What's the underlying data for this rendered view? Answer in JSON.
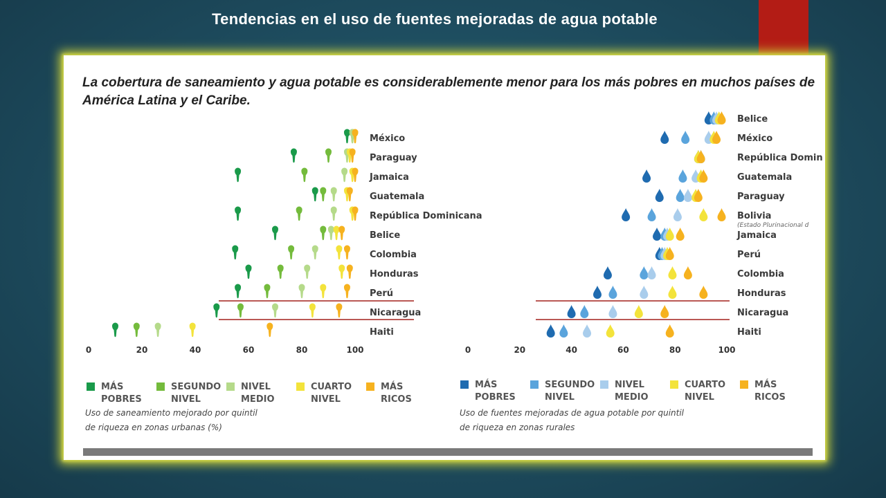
{
  "slide": {
    "title": "Tendencias en el uso de fuentes mejoradas de agua potable"
  },
  "figure": {
    "heading_line1": "La cobertura de saneamiento y agua potable es considerablemente menor para los más pobres en muchos países de",
    "heading_line2": "América Latina y el Caribe."
  },
  "chart_data": [
    {
      "type": "scatter",
      "title": "",
      "note_line1": "Uso de saneamiento mejorado por quintil",
      "note_line2": "de riqueza en zonas urbanas (%)",
      "ticks": [
        "0",
        "20",
        "40",
        "60",
        "80",
        "100"
      ],
      "xlim": [
        0,
        100
      ],
      "highlighted": [
        "Nicaragua"
      ],
      "legend": [
        {
          "l1": "MÁS",
          "l2": "POBRES",
          "color": "#1a9a4a"
        },
        {
          "l1": "SEGUNDO",
          "l2": "NIVEL",
          "color": "#74bb3c"
        },
        {
          "l1": "NIVEL",
          "l2": "MEDIO",
          "color": "#b5da8a"
        },
        {
          "l1": "CUARTO",
          "l2": "NIVEL",
          "color": "#f3e33b"
        },
        {
          "l1": "MÁS",
          "l2": "RICOS",
          "color": "#f6b21f"
        }
      ],
      "series_labels": [
        "Más pobres",
        "Segundo nivel",
        "Nivel medio",
        "Cuarto nivel",
        "Más ricos"
      ],
      "countries": [
        {
          "name": "México",
          "values": [
            97,
            99,
            99,
            100,
            100
          ]
        },
        {
          "name": "Paraguay",
          "values": [
            77,
            90,
            97,
            98,
            99
          ]
        },
        {
          "name": "Jamaica",
          "values": [
            56,
            81,
            96,
            99,
            100
          ]
        },
        {
          "name": "Guatemala",
          "values": [
            85,
            88,
            92,
            97,
            98
          ]
        },
        {
          "name": "República Dominicana",
          "values": [
            56,
            79,
            92,
            99,
            100
          ]
        },
        {
          "name": "Belice",
          "values": [
            70,
            88,
            91,
            93,
            95
          ]
        },
        {
          "name": "Colombia",
          "values": [
            55,
            76,
            85,
            94,
            97
          ]
        },
        {
          "name": "Honduras",
          "values": [
            60,
            72,
            82,
            95,
            98
          ]
        },
        {
          "name": "Perú",
          "values": [
            56,
            67,
            80,
            88,
            97
          ]
        },
        {
          "name": "Nicaragua",
          "values": [
            48,
            57,
            70,
            84,
            94
          ]
        },
        {
          "name": "Haiti",
          "values": [
            10,
            18,
            26,
            39,
            68
          ]
        }
      ]
    },
    {
      "type": "scatter",
      "title": "",
      "note_line1": "Uso de fuentes mejoradas de agua potable por quintil",
      "note_line2": "de riqueza en zonas rurales",
      "ticks": [
        "0",
        "20",
        "40",
        "60",
        "80",
        "100"
      ],
      "xlim": [
        0,
        100
      ],
      "highlighted": [
        "Nicaragua"
      ],
      "legend": [
        {
          "l1": "MÁS",
          "l2": "POBRES",
          "color": "#1f6bb0"
        },
        {
          "l1": "SEGUNDO",
          "l2": "NIVEL",
          "color": "#5aa4dc"
        },
        {
          "l1": "NIVEL",
          "l2": "MEDIO",
          "color": "#a9cdec"
        },
        {
          "l1": "CUARTO",
          "l2": "NIVEL",
          "color": "#f3e33b"
        },
        {
          "l1": "MÁS",
          "l2": "RICOS",
          "color": "#f6b21f"
        }
      ],
      "series_labels": [
        "Más pobres",
        "Segundo nivel",
        "Nivel medio",
        "Cuarto nivel",
        "Más ricos"
      ],
      "countries": [
        {
          "name": "Belice",
          "sub": "",
          "values": [
            93,
            95,
            96,
            97,
            98
          ]
        },
        {
          "name": "México",
          "sub": "",
          "values": [
            76,
            84,
            93,
            95,
            96
          ]
        },
        {
          "name": "República Domin",
          "sub": "",
          "values": [
            89,
            90,
            90,
            89,
            90
          ]
        },
        {
          "name": "Guatemala",
          "sub": "",
          "values": [
            69,
            83,
            88,
            90,
            91
          ]
        },
        {
          "name": "Paraguay",
          "sub": "",
          "values": [
            74,
            82,
            85,
            88,
            89
          ]
        },
        {
          "name": "Bolivia",
          "sub": "(Estado Plurinacional d",
          "values": [
            61,
            71,
            81,
            91,
            98
          ]
        },
        {
          "name": "Jamaica",
          "sub": "",
          "values": [
            73,
            76,
            77,
            78,
            82
          ]
        },
        {
          "name": "Perú",
          "sub": "",
          "values": [
            74,
            75,
            76,
            77,
            78
          ]
        },
        {
          "name": "Colombia",
          "sub": "",
          "values": [
            54,
            68,
            71,
            79,
            85
          ]
        },
        {
          "name": "Honduras",
          "sub": "",
          "values": [
            50,
            56,
            68,
            79,
            91
          ]
        },
        {
          "name": "Nicaragua",
          "sub": "",
          "values": [
            40,
            45,
            56,
            66,
            76
          ]
        },
        {
          "name": "Haiti",
          "sub": "",
          "values": [
            32,
            37,
            46,
            55,
            78
          ]
        }
      ]
    }
  ]
}
